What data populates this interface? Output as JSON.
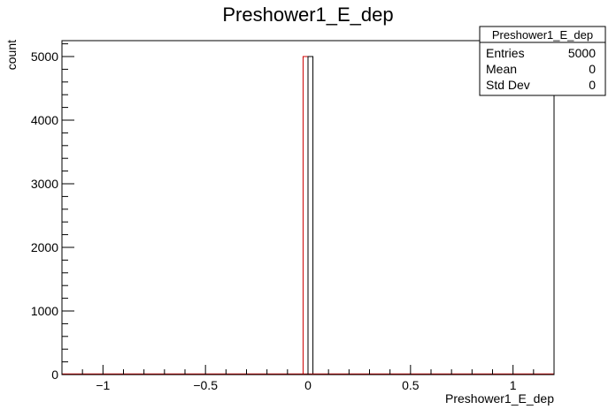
{
  "chart_data": {
    "type": "bar",
    "title": "Preshower1_E_dep",
    "xlabel": "Preshower1_E_dep",
    "ylabel": "count",
    "xlim": [
      -1.2,
      1.2
    ],
    "ylim": [
      0,
      5250
    ],
    "x_ticks": [
      -1,
      -0.5,
      0,
      0.5,
      1
    ],
    "x_tick_labels": [
      "−1",
      "−0.5",
      "0",
      "0.5",
      "1"
    ],
    "y_ticks": [
      0,
      1000,
      2000,
      3000,
      4000,
      5000
    ],
    "y_tick_labels": [
      "0",
      "1000",
      "2000",
      "3000",
      "4000",
      "5000"
    ],
    "bins": [
      {
        "x_low": -0.024,
        "x_high": 0.0,
        "value": 5000,
        "color": "#cc0000"
      },
      {
        "x_low": 0.0,
        "x_high": 0.024,
        "value": 5000,
        "color": "#000000"
      }
    ],
    "baseline_color": "#cc0000",
    "grid": false
  },
  "stats": {
    "title": "Preshower1_E_dep",
    "rows": [
      {
        "label": "Entries",
        "value": "5000"
      },
      {
        "label": "Mean",
        "value": "0"
      },
      {
        "label": "Std Dev",
        "value": "0"
      }
    ]
  }
}
